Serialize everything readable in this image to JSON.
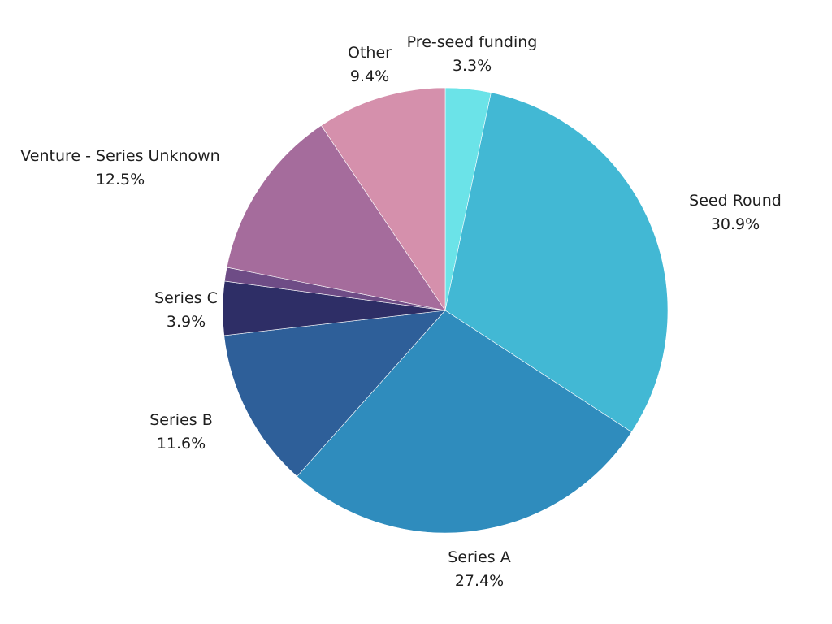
{
  "chart_data": {
    "type": "pie",
    "title": "",
    "slices": [
      {
        "label": "Pre-seed funding",
        "value": 3.3,
        "value_label": "3.3%",
        "color": "#6be3e8"
      },
      {
        "label": "Seed Round",
        "value": 30.9,
        "value_label": "30.9%",
        "color": "#42b8d4"
      },
      {
        "label": "Series A",
        "value": 27.4,
        "value_label": "27.4%",
        "color": "#2f8cbd"
      },
      {
        "label": "Series B",
        "value": 11.6,
        "value_label": "11.6%",
        "color": "#2e5f99"
      },
      {
        "label": "Series C",
        "value": 3.9,
        "value_label": "3.9%",
        "color": "#2e2e66"
      },
      {
        "label": "",
        "value": 1.0,
        "value_label": "",
        "color": "#6e4c86"
      },
      {
        "label": "Venture - Series Unknown",
        "value": 12.5,
        "value_label": "12.5%",
        "color": "#a56c9c"
      },
      {
        "label": "Other",
        "value": 9.4,
        "value_label": "9.4%",
        "color": "#d590ac"
      }
    ]
  }
}
